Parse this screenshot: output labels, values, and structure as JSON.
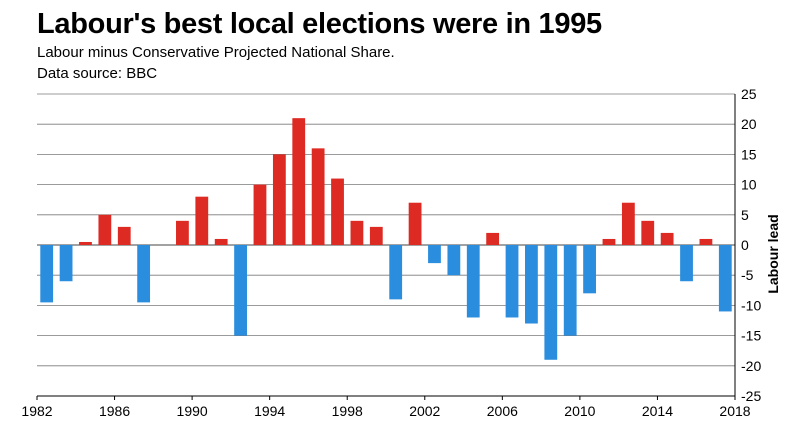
{
  "title": "Labour's best local elections were in 1995",
  "subtitle": "Labour minus Conservative Projected National Share.",
  "source": "Data source: BBC",
  "colors": {
    "positive": "#dd2a22",
    "negative": "#2a8ddd",
    "grid": "#7a7a7a",
    "axis": "#000000"
  },
  "chart_data": {
    "type": "bar",
    "ylabel": "Labour lead",
    "ylim": [
      -25,
      25
    ],
    "yticks": [
      25,
      20,
      15,
      10,
      5,
      0,
      -5,
      -10,
      -15,
      -20,
      -25
    ],
    "xticks": [
      1982,
      1986,
      1990,
      1994,
      1998,
      2002,
      2006,
      2010,
      2014,
      2018
    ],
    "xlim": [
      1982,
      2018
    ],
    "grid": true,
    "x": [
      1982,
      1983,
      1984,
      1985,
      1986,
      1987,
      1989,
      1990,
      1991,
      1992,
      1993,
      1994,
      1995,
      1996,
      1997,
      1998,
      1999,
      2000,
      2001,
      2002,
      2003,
      2004,
      2005,
      2006,
      2007,
      2008,
      2009,
      2010,
      2011,
      2012,
      2013,
      2014,
      2015,
      2016,
      2017
    ],
    "values": [
      -9.5,
      -6,
      0.5,
      5,
      3,
      -9.5,
      4,
      8,
      1,
      -15,
      10,
      15,
      21,
      16,
      11,
      4,
      3,
      -9,
      7,
      -3,
      -5,
      -12,
      2,
      -12,
      -13,
      -19,
      -15,
      -8,
      1,
      7,
      4,
      2,
      -6,
      1,
      -11
    ]
  }
}
